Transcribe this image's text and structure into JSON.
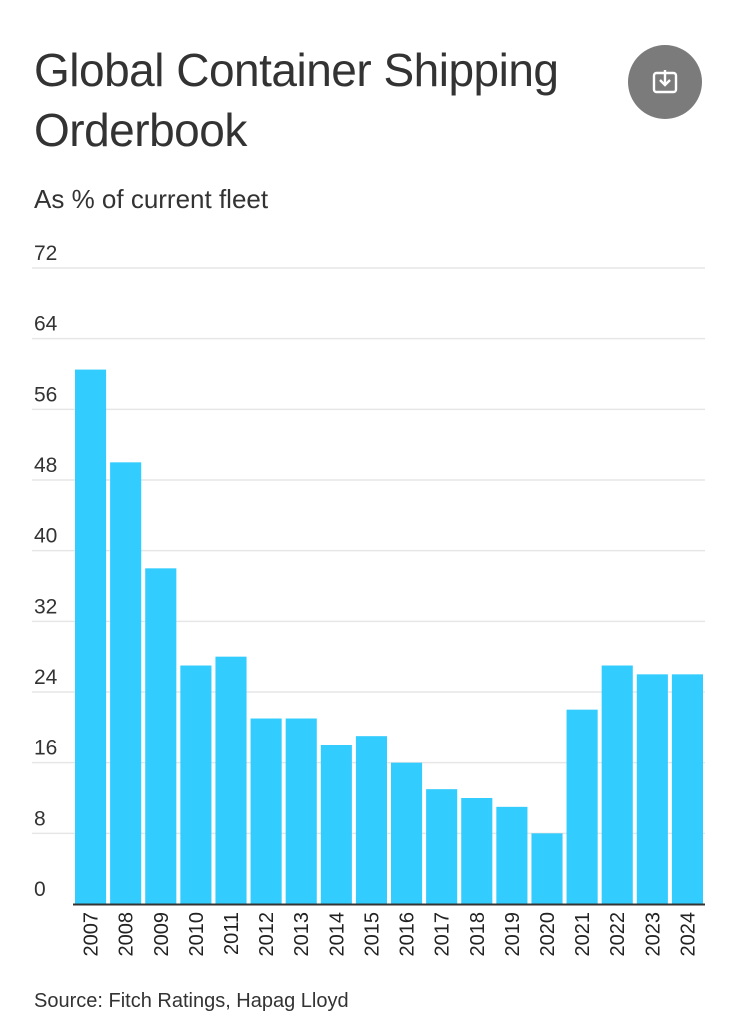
{
  "header": {
    "title": "Global Container Shipping Orderbook",
    "subtitle": "As % of current fleet",
    "download_icon": "download-icon"
  },
  "footer": {
    "source": "Source: Fitch Ratings, Hapag Lloyd"
  },
  "colors": {
    "bar": "#33ccff",
    "grid": "#e6e6e6",
    "axis": "#333333",
    "button": "#7b7b7b"
  },
  "chart_data": {
    "type": "bar",
    "title": "Global Container Shipping Orderbook",
    "subtitle": "As % of current fleet",
    "xlabel": "",
    "ylabel": "",
    "categories": [
      "2007",
      "2008",
      "2009",
      "2010",
      "2011",
      "2012",
      "2013",
      "2014",
      "2015",
      "2016",
      "2017",
      "2018",
      "2019",
      "2020",
      "2021",
      "2022",
      "2023",
      "2024"
    ],
    "values": [
      60.5,
      50,
      38,
      27,
      28,
      21,
      21,
      18,
      19,
      16,
      13,
      12,
      11,
      8,
      22,
      27,
      26,
      26
    ],
    "yticks": [
      0,
      8,
      16,
      24,
      32,
      40,
      48,
      56,
      64,
      72
    ],
    "ylim": [
      0,
      72
    ],
    "grid": true,
    "legend": "none"
  }
}
